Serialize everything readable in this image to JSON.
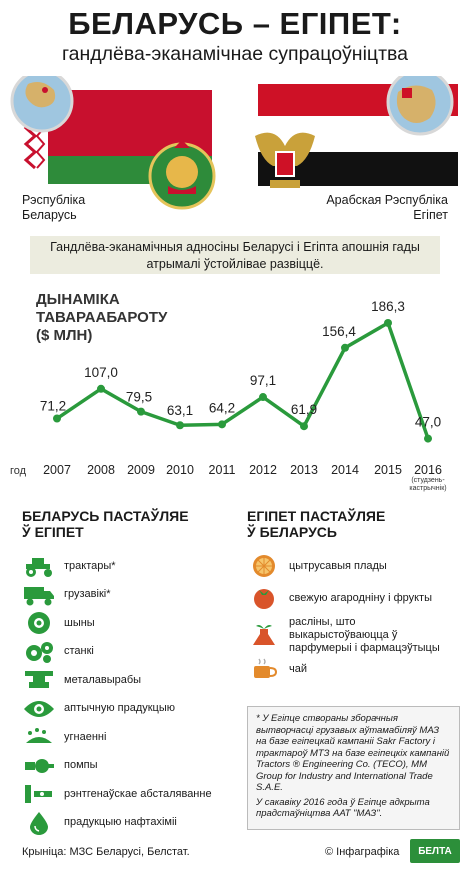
{
  "header": {
    "title": "БЕЛАРУСЬ – ЕГІПЕТ:",
    "subtitle": "гандлёва-эканамічнае супрацоўніцтва"
  },
  "countries": {
    "left": "Рэспубліка Беларусь",
    "right": "Арабская Рэспубліка Егіпет"
  },
  "banner": "Гандлёва-эканамічныя адносіны Беларусі і Егіпта апошнія гады атрымалі ўстойлівае развіццё.",
  "chart_data": {
    "type": "line",
    "title": "ДЫНАМІКА ТАВАРААБАРОТУ ($ МЛН)",
    "xlabel": "год",
    "x": [
      "2007",
      "2008",
      "2009",
      "2010",
      "2011",
      "2012",
      "2013",
      "2014",
      "2015",
      "2016"
    ],
    "values": [
      71.2,
      107.0,
      79.5,
      63.1,
      64.2,
      97.1,
      61.9,
      156.4,
      186.3,
      47.0
    ],
    "value_labels": [
      "71,2",
      "107,0",
      "79,5",
      "63,1",
      "64,2",
      "97,1",
      "61,9",
      "156,4",
      "186,3",
      "47,0"
    ],
    "x_note": "(студзень-кастрычнік)",
    "color": "#2a9a3c",
    "grid": false
  },
  "exports": {
    "title": "БЕЛАРУСЬ ПАСТАЎЛЯЕ Ў ЕГІПЕТ",
    "items": [
      {
        "label": "трактары*",
        "icon": "tractor-icon"
      },
      {
        "label": "грузавікі*",
        "icon": "truck-icon"
      },
      {
        "label": "шыны",
        "icon": "tire-icon"
      },
      {
        "label": "станкі",
        "icon": "gears-icon"
      },
      {
        "label": "металавырабы",
        "icon": "anvil-icon"
      },
      {
        "label": "аптычную прадукцыю",
        "icon": "eye-icon"
      },
      {
        "label": "угнаенні",
        "icon": "fertilizer-icon"
      },
      {
        "label": "помпы",
        "icon": "pump-icon"
      },
      {
        "label": "рэнтгенаўскае абсталяванне",
        "icon": "xray-icon"
      },
      {
        "label": "прадукцыю нафтахіміі",
        "icon": "oil-drop-icon"
      }
    ]
  },
  "imports": {
    "title": "ЕГІПЕТ ПАСТАЎЛЯЕ Ў БЕЛАРУСЬ",
    "items": [
      {
        "label": "цытрусавыя плады",
        "icon": "citrus-icon"
      },
      {
        "label": "свежую агародніну і фрукты",
        "icon": "tomato-icon"
      },
      {
        "label": "расліны, што выкарыстоўваюцца ў парфумерыі і фармацэўтыцы",
        "icon": "plant-flask-icon"
      },
      {
        "label": "чай",
        "icon": "tea-cup-icon"
      }
    ]
  },
  "note": {
    "p1": "* У Егіпце створаны зборачныя вытворчасці грузавых аўтамабіляў МАЗ на базе егіпецкай кампаніі Sakr Factory і трактароў МТЗ на базе егіпецкіх кампаній Tractors ® Engineering Co. (TECO), MM Group for Industry and International Trade S.A.E.",
    "p2": "У сакавіку 2016 года ў Егіпце адкрыта прадстаўніцтва ААТ \"МАЗ\"."
  },
  "footer": {
    "source": "Крыніца: МЗС Беларусі, Белстат.",
    "copyright": "© Інфаграфіка",
    "logo": "БЕЛТА"
  },
  "colors": {
    "green": "#2a9a3c",
    "belarus_red": "#c8102e",
    "egypt_red": "#ce1126",
    "egypt_black": "#111111"
  }
}
